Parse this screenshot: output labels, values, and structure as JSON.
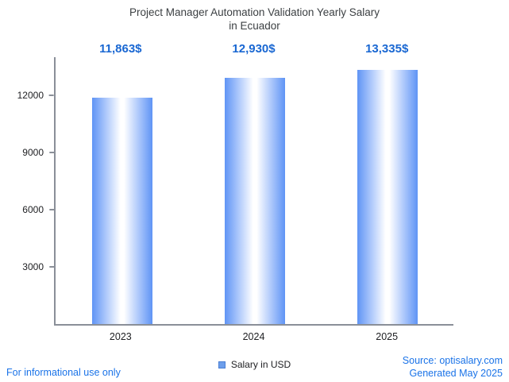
{
  "header": {
    "title_line1": "Project Manager Automation Validation Yearly Salary",
    "title_line2": "in Ecuador"
  },
  "legend": {
    "label": "Salary in USD"
  },
  "footer": {
    "left": "For informational use only",
    "source": "Source: optisalary.com",
    "generated": "Generated May 2025"
  },
  "colors": {
    "accent": "#1a73e8",
    "value_label": "#1967d2",
    "bar_edge": "#5f94f5",
    "bar_center": "#ffffff",
    "axis": "#8a8f98",
    "text": "#3c4043",
    "legend_swatch": "#6d9eeb"
  },
  "chart_data": {
    "type": "bar",
    "title": "Project Manager Automation Validation Yearly Salary in Ecuador",
    "categories": [
      "2023",
      "2024",
      "2025"
    ],
    "values": [
      11863,
      12930,
      13335
    ],
    "value_labels": [
      "11,863$",
      "12,930$",
      "13,335$"
    ],
    "series": [
      {
        "name": "Salary in USD",
        "values": [
          11863,
          12930,
          13335
        ]
      }
    ],
    "xlabel": "",
    "ylabel": "",
    "yticks": [
      3000,
      6000,
      9000,
      12000
    ],
    "ylim": [
      0,
      14000
    ],
    "grid": false,
    "legend_position": "bottom"
  }
}
